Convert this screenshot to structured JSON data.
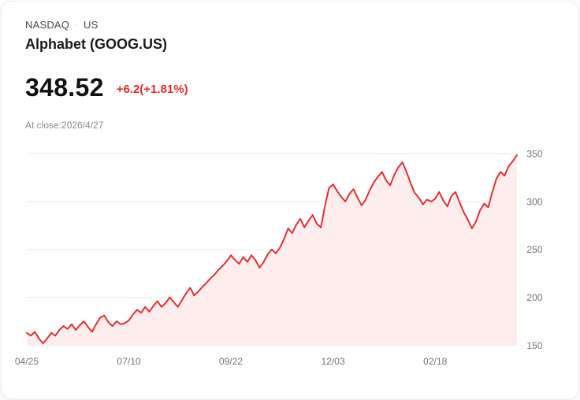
{
  "header": {
    "exchange": "NASDAQ",
    "separator": "·",
    "region": "US",
    "title": "Alphabet (GOOG.US)"
  },
  "quote": {
    "price": "348.52",
    "change": "+6.2(+1.81%)",
    "change_color": "#e02b2b",
    "as_of": "At close:2026/4/27"
  },
  "chart_data": {
    "type": "area",
    "title": "",
    "xlabel": "",
    "ylabel": "",
    "x_tick_labels": [
      "04/25",
      "07/10",
      "09/22",
      "12/03",
      "02/18"
    ],
    "x_tick_indices": [
      0,
      25,
      50,
      75,
      100
    ],
    "y_ticks": [
      150,
      200,
      250,
      300,
      350
    ],
    "ylim": [
      148,
      356
    ],
    "grid": true,
    "legend": "none",
    "line_color": "#e12b2e",
    "fill_color": "#fdeded",
    "grid_color": "#ebebeb",
    "values": [
      163,
      160,
      164,
      157,
      152,
      157,
      163,
      160,
      166,
      170,
      167,
      172,
      166,
      171,
      175,
      169,
      164,
      172,
      179,
      181,
      174,
      170,
      175,
      172,
      173,
      176,
      182,
      187,
      184,
      190,
      185,
      191,
      196,
      190,
      194,
      200,
      195,
      190,
      197,
      204,
      210,
      202,
      206,
      211,
      215,
      220,
      224,
      229,
      233,
      238,
      244,
      239,
      235,
      242,
      237,
      244,
      239,
      231,
      237,
      245,
      250,
      246,
      252,
      261,
      272,
      267,
      276,
      282,
      273,
      280,
      286,
      277,
      273,
      295,
      314,
      318,
      311,
      305,
      300,
      308,
      313,
      304,
      296,
      302,
      312,
      320,
      326,
      331,
      322,
      317,
      328,
      336,
      341,
      331,
      319,
      309,
      304,
      297,
      302,
      300,
      303,
      310,
      301,
      295,
      306,
      310,
      299,
      289,
      281,
      272,
      279,
      291,
      298,
      294,
      310,
      324,
      331,
      327,
      337,
      342,
      348.5
    ]
  }
}
